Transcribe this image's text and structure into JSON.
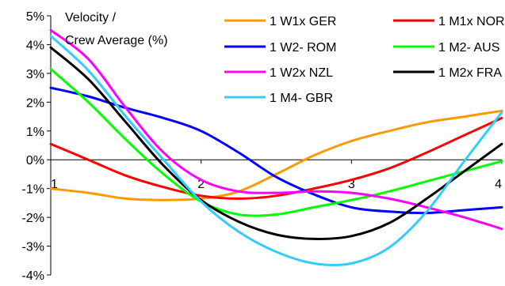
{
  "chart_data": {
    "type": "line",
    "title": "",
    "ylabel": "Velocity / Crew Average (%)",
    "ylabel_lines": [
      "Velocity /",
      "Crew Average (%)"
    ],
    "xlabel": "",
    "xlim": [
      1,
      4
    ],
    "ylim": [
      -4,
      5
    ],
    "x_ticks": [
      1,
      2,
      3,
      4
    ],
    "x_tick_labels": [
      "1",
      "2",
      "3",
      "4"
    ],
    "y_ticks": [
      -4,
      -3,
      -2,
      -1,
      0,
      1,
      2,
      3,
      4,
      5
    ],
    "y_tick_labels": [
      "-4%",
      "-3%",
      "-2%",
      "-1%",
      "0%",
      "1%",
      "2%",
      "3%",
      "4%",
      "5%"
    ],
    "grid": false,
    "legend_position": "top-right",
    "series": [
      {
        "name": "1 W1x GER",
        "color": "#ff9900",
        "x": [
          1,
          1.25,
          1.5,
          1.75,
          2,
          2.25,
          2.5,
          2.75,
          3,
          3.25,
          3.5,
          3.75,
          4
        ],
        "y": [
          -1.0,
          -1.15,
          -1.35,
          -1.4,
          -1.35,
          -1.1,
          -0.5,
          0.15,
          0.65,
          1.0,
          1.3,
          1.5,
          1.7
        ]
      },
      {
        "name": "1 M1x NOR",
        "color": "#ff0000",
        "x": [
          1,
          1.25,
          1.5,
          1.75,
          2,
          2.25,
          2.5,
          2.75,
          3,
          3.25,
          3.5,
          3.75,
          4
        ],
        "y": [
          0.55,
          0.0,
          -0.55,
          -0.95,
          -1.25,
          -1.35,
          -1.25,
          -1.0,
          -0.7,
          -0.3,
          0.25,
          0.85,
          1.45
        ]
      },
      {
        "name": "1 W2- ROM",
        "color": "#0000ff",
        "x": [
          1,
          1.25,
          1.5,
          1.75,
          2,
          2.25,
          2.5,
          2.75,
          3,
          3.25,
          3.5,
          3.75,
          4
        ],
        "y": [
          2.5,
          2.2,
          1.8,
          1.45,
          1.0,
          0.25,
          -0.6,
          -1.2,
          -1.65,
          -1.8,
          -1.85,
          -1.75,
          -1.65
        ]
      },
      {
        "name": "1 M2- AUS",
        "color": "#00ff00",
        "x": [
          1,
          1.25,
          1.5,
          1.75,
          2,
          2.25,
          2.5,
          2.75,
          3,
          3.25,
          3.5,
          3.75,
          4
        ],
        "y": [
          3.15,
          2.0,
          0.7,
          -0.5,
          -1.45,
          -1.9,
          -1.9,
          -1.65,
          -1.4,
          -1.1,
          -0.75,
          -0.4,
          -0.05
        ]
      },
      {
        "name": "1 W2x NZL",
        "color": "#ff00ff",
        "x": [
          1,
          1.25,
          1.5,
          1.75,
          2,
          2.25,
          2.5,
          2.75,
          3,
          3.25,
          3.5,
          3.75,
          4
        ],
        "y": [
          4.5,
          3.5,
          1.8,
          0.25,
          -0.7,
          -1.1,
          -1.15,
          -1.1,
          -1.15,
          -1.35,
          -1.65,
          -2.0,
          -2.4
        ]
      },
      {
        "name": "1 M2x FRA",
        "color": "#000000",
        "x": [
          1,
          1.25,
          1.5,
          1.75,
          2,
          2.25,
          2.5,
          2.75,
          3,
          3.25,
          3.5,
          3.75,
          4
        ],
        "y": [
          3.9,
          2.8,
          1.3,
          -0.2,
          -1.4,
          -2.15,
          -2.6,
          -2.75,
          -2.65,
          -2.2,
          -1.35,
          -0.4,
          0.55
        ]
      },
      {
        "name": "1 M4- GBR",
        "color": "#33ccff",
        "x": [
          1,
          1.25,
          1.5,
          1.75,
          2,
          2.25,
          2.5,
          2.75,
          3,
          3.25,
          3.5,
          3.75,
          4
        ],
        "y": [
          4.3,
          3.1,
          1.5,
          0.0,
          -1.45,
          -2.5,
          -3.2,
          -3.6,
          -3.6,
          -3.05,
          -1.8,
          -0.05,
          1.65
        ]
      }
    ]
  }
}
